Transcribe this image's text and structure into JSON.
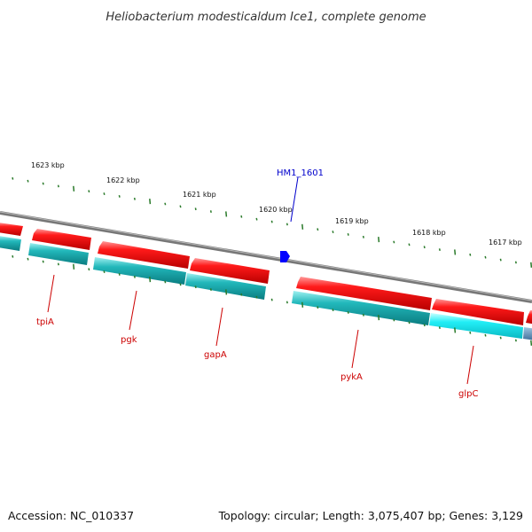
{
  "title": "Heliobacterium modesticaldum Ice1, complete genome",
  "footer": {
    "accession": "Accession: NC_010337",
    "summary": "Topology: circular; Length: 3,075,407 bp; Genes: 3,129"
  },
  "colors": {
    "forward_strand": "#e60000",
    "reverse_strand": "#12a5a8",
    "reverse_strand_highlight": "#1ee2ee",
    "tick": "#2a7a2a",
    "backbone": "#888888",
    "gene_label": "#cc0000",
    "feature_label": "#0000cc",
    "feature_marker": "#0000ff"
  },
  "scale_labels": [
    "1623 kbp",
    "1622 kbp",
    "1621 kbp",
    "1620 kbp",
    "1619 kbp",
    "1618 kbp",
    "1617 kbp"
  ],
  "gene_labels": [
    "tpiA",
    "pgk",
    "gapA",
    "pykA",
    "glpC"
  ],
  "feature_label": "HM1_1601",
  "icons": {
    "feature_marker": "pentagon-marker-icon"
  }
}
